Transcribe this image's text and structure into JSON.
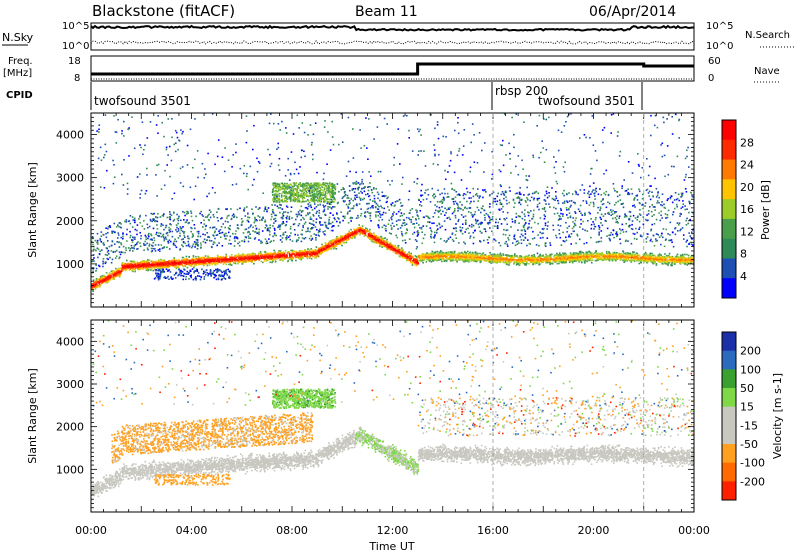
{
  "header": {
    "station": "Blackstone (fitACF)",
    "beam": "Beam 11",
    "date": "06/Apr/2014"
  },
  "labels": {
    "nsky": "N.Sky",
    "nsearch": "N.Search",
    "freq_line1": "Freq.",
    "freq_line2": "[MHz]",
    "nave": "Nave",
    "cpid": "CPID",
    "tick_1e5": "10^5",
    "tick_1e0": "10^0",
    "freq_hi": "18",
    "freq_lo": "8",
    "nave_hi": "60",
    "nave_lo": "0"
  },
  "cpid_segments": [
    {
      "label": "twofsound 3501",
      "start": 0,
      "end": 16
    },
    {
      "label": "rbsp 200",
      "start": 16,
      "end": 22
    },
    {
      "label": "twofsound 3501",
      "start": 16,
      "end": 22
    }
  ],
  "chart_data": [
    {
      "type": "heatmap",
      "name": "power",
      "ylabel": "Slant Range [km]",
      "ylim": [
        0,
        4500
      ],
      "yticks": [
        "1000",
        "2000",
        "3000",
        "4000"
      ],
      "colorbar_label": "Power [dB]",
      "colorbar_ticks": [
        "4",
        "8",
        "12",
        "16",
        "20",
        "24",
        "28"
      ],
      "colorbar_colors": [
        "#0000ff",
        "#1e50b4",
        "#2e8b57",
        "#4aa04a",
        "#9ccc2a",
        "#ffc400",
        "#ff7a00",
        "#ff2a00",
        "#ff0000"
      ]
    },
    {
      "type": "heatmap",
      "name": "velocity",
      "ylabel": "Slant Range [km]",
      "ylim": [
        0,
        4500
      ],
      "yticks": [
        "1000",
        "2000",
        "3000",
        "4000"
      ],
      "colorbar_label": "Velocity [m s-1]",
      "colorbar_ticks": [
        "200",
        "100",
        "50",
        "15",
        "-15",
        "-50",
        "-100",
        "-200"
      ],
      "colorbar_colors": [
        "#1b2fa8",
        "#2a6bc0",
        "#3aa030",
        "#7ed848",
        "#c8c8c0",
        "#c8c8c0",
        "#ffa020",
        "#ff6a00",
        "#ff2000"
      ]
    }
  ],
  "xaxis": {
    "label": "Time UT",
    "ticks": [
      "00:00",
      "04:00",
      "08:00",
      "12:00",
      "16:00",
      "20:00",
      "00:00"
    ]
  }
}
